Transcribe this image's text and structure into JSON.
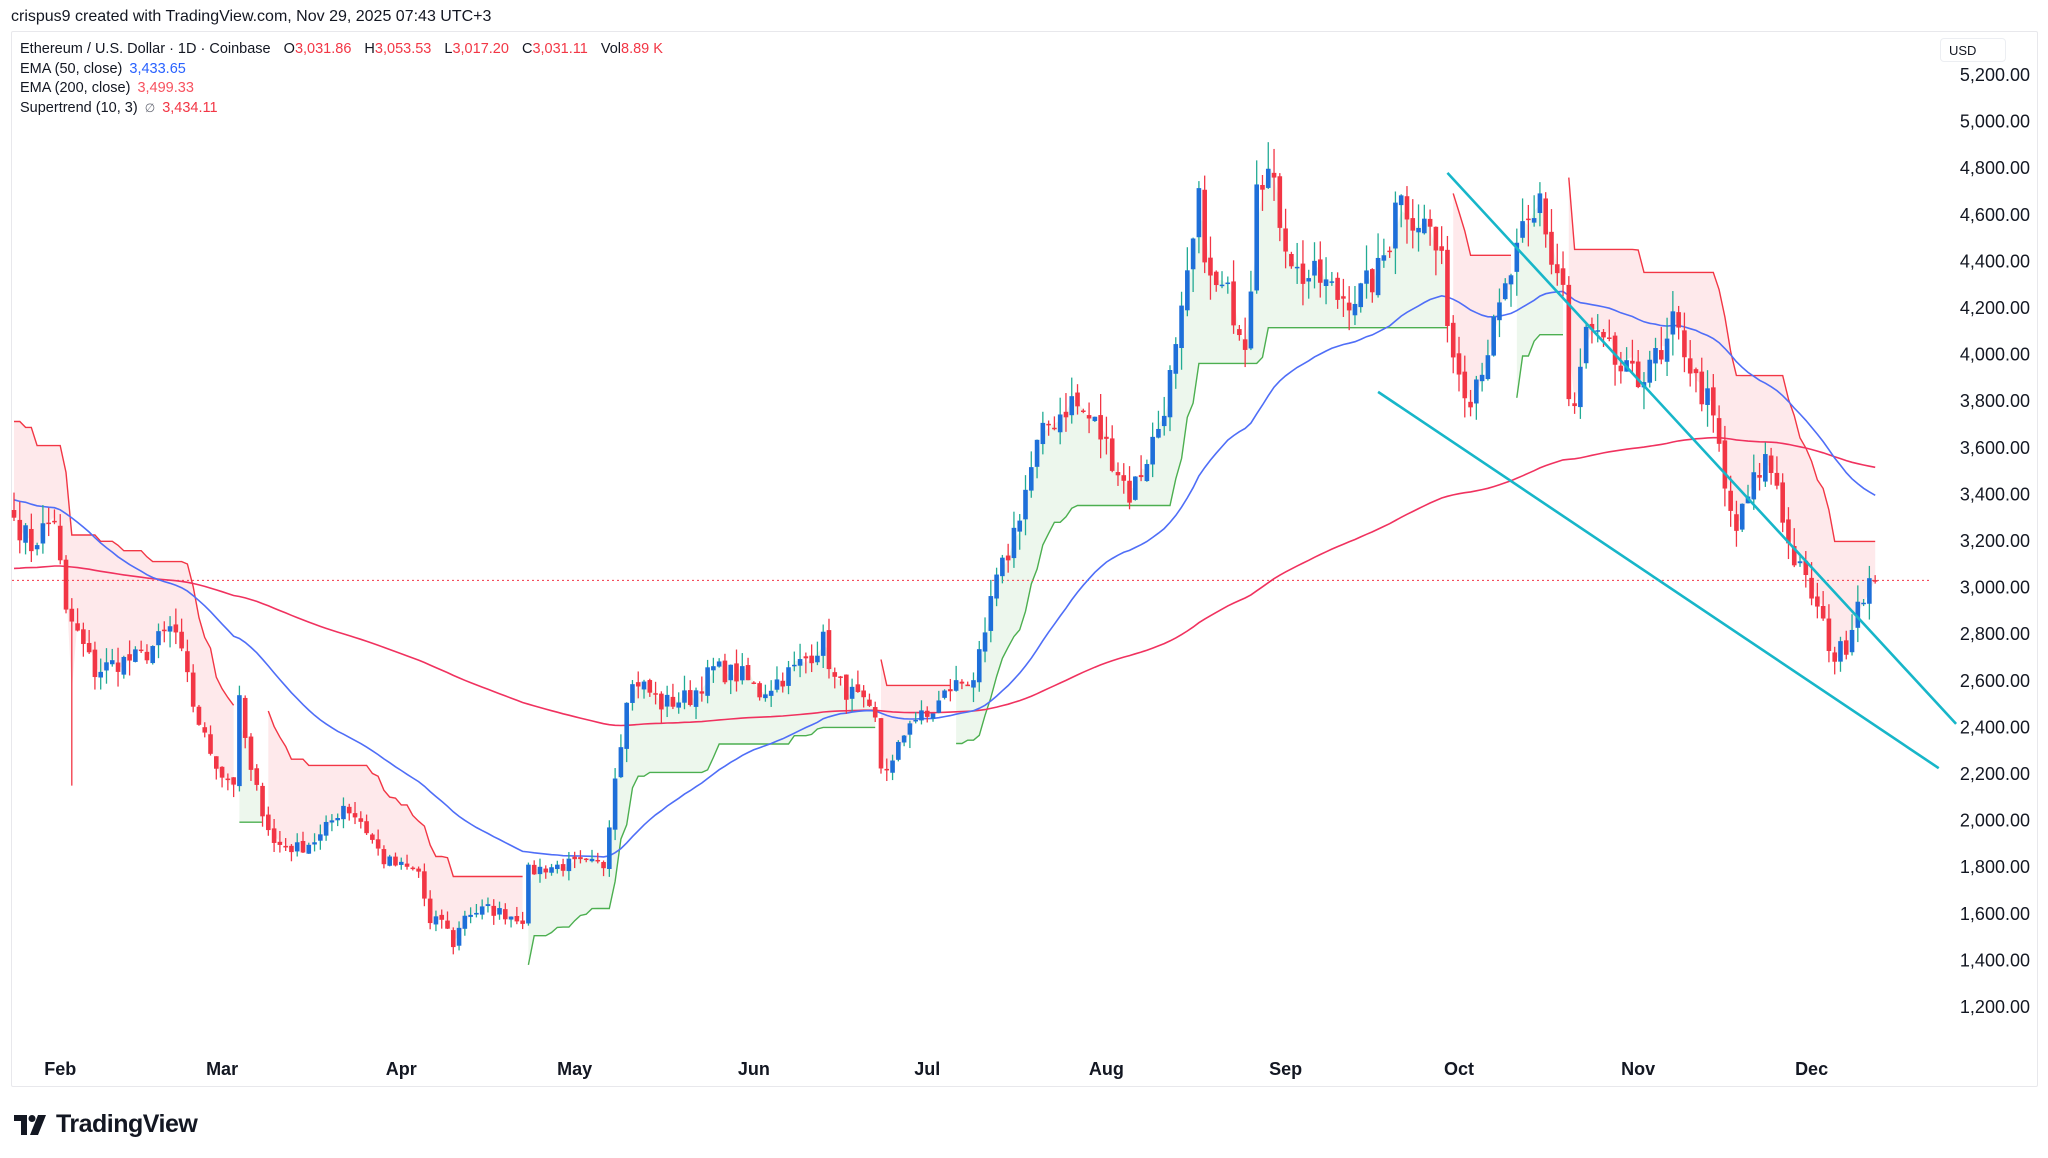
{
  "credit": "crispus9 created with TradingView.com, Nov 29, 2025 07:43 UTC+3",
  "legend": {
    "symbol": "Ethereum / U.S. Dollar · 1D · Coinbase",
    "open_label": "O",
    "open": "3,031.86",
    "high_label": "H",
    "high": "3,053.53",
    "low_label": "L",
    "low": "3,017.20",
    "close_label": "C",
    "close": "3,031.11",
    "vol_label": "Vol",
    "vol": "8.89 K",
    "ema50_label": "EMA (50, close)",
    "ema50": "3,433.65",
    "ema200_label": "EMA (200, close)",
    "ema200": "3,499.33",
    "supertrend_label": "Supertrend (10, 3)",
    "supertrend_icon": "∅",
    "supertrend": "3,434.11"
  },
  "currency": "USD",
  "brand": "TradingView",
  "colors": {
    "up_body": "#1e6fd9",
    "up_wick": "#22ab94",
    "down": "#f23645",
    "ema50": "#4f6ef7",
    "ema200": "#f0325f",
    "st_up": "#4caf50",
    "st_down": "#f23645",
    "st_up_fill": "rgba(76,175,80,0.10)",
    "st_down_fill": "rgba(242,54,69,0.11)",
    "wedge": "#17b6c9",
    "last_price_line": "#f23645"
  },
  "chart_data": {
    "type": "candlestick",
    "title": "Ethereum / U.S. Dollar · 1D · Coinbase",
    "xlabel": "",
    "ylabel": "USD",
    "ylim": [
      1050,
      5280
    ],
    "y_ticks": [
      "5,200.00",
      "5,000.00",
      "4,800.00",
      "4,600.00",
      "4,400.00",
      "4,200.00",
      "4,000.00",
      "3,800.00",
      "3,600.00",
      "3,400.00",
      "3,200.00",
      "3,000.00",
      "2,800.00",
      "2,600.00",
      "2,400.00",
      "2,200.00",
      "2,000.00",
      "1,800.00",
      "1,600.00",
      "1,400.00",
      "1,200.00"
    ],
    "x_ticks": [
      "Feb",
      "Mar",
      "Apr",
      "May",
      "Jun",
      "Jul",
      "Aug",
      "Sep",
      "Oct",
      "Nov",
      "Dec"
    ],
    "x_tick_day_index": [
      8,
      36,
      67,
      97,
      128,
      158,
      189,
      220,
      250,
      281,
      311
    ],
    "start_date": "2025-01-24",
    "end_date": "2025-11-29",
    "close_anchors": [
      [
        0,
        3300
      ],
      [
        3,
        3180
      ],
      [
        5,
        3250
      ],
      [
        7,
        3300
      ],
      [
        9,
        2880
      ],
      [
        10,
        2850
      ],
      [
        14,
        2640
      ],
      [
        18,
        2680
      ],
      [
        22,
        2700
      ],
      [
        27,
        2820
      ],
      [
        28,
        2800
      ],
      [
        31,
        2500
      ],
      [
        33,
        2350
      ],
      [
        36,
        2200
      ],
      [
        38,
        2170
      ],
      [
        39,
        2500
      ],
      [
        41,
        2200
      ],
      [
        45,
        1900
      ],
      [
        49,
        1880
      ],
      [
        53,
        1930
      ],
      [
        57,
        2070
      ],
      [
        60,
        2000
      ],
      [
        64,
        1830
      ],
      [
        67,
        1800
      ],
      [
        70,
        1780
      ],
      [
        72,
        1550
      ],
      [
        74,
        1580
      ],
      [
        76,
        1470
      ],
      [
        78,
        1600
      ],
      [
        82,
        1620
      ],
      [
        88,
        1580
      ],
      [
        89,
        1780
      ],
      [
        92,
        1800
      ],
      [
        96,
        1810
      ],
      [
        102,
        1810
      ],
      [
        104,
        2200
      ],
      [
        105,
        2350
      ],
      [
        106,
        2550
      ],
      [
        108,
        2600
      ],
      [
        112,
        2500
      ],
      [
        117,
        2530
      ],
      [
        121,
        2650
      ],
      [
        126,
        2620
      ],
      [
        129,
        2550
      ],
      [
        135,
        2650
      ],
      [
        138,
        2720
      ],
      [
        140,
        2770
      ],
      [
        142,
        2600
      ],
      [
        146,
        2520
      ],
      [
        149,
        2420
      ],
      [
        150,
        2230
      ],
      [
        152,
        2240
      ],
      [
        155,
        2440
      ],
      [
        158,
        2440
      ],
      [
        162,
        2570
      ],
      [
        166,
        2620
      ],
      [
        168,
        2760
      ],
      [
        169,
        2950
      ],
      [
        172,
        3150
      ],
      [
        175,
        3420
      ],
      [
        177,
        3600
      ],
      [
        179,
        3700
      ],
      [
        183,
        3800
      ],
      [
        187,
        3700
      ],
      [
        190,
        3560
      ],
      [
        193,
        3400
      ],
      [
        195,
        3500
      ],
      [
        198,
        3690
      ],
      [
        201,
        4000
      ],
      [
        203,
        4300
      ],
      [
        205,
        4640
      ],
      [
        207,
        4300
      ],
      [
        210,
        4250
      ],
      [
        213,
        4080
      ],
      [
        214,
        4330
      ],
      [
        215,
        4800
      ],
      [
        217,
        4780
      ],
      [
        220,
        4500
      ],
      [
        222,
        4350
      ],
      [
        226,
        4320
      ],
      [
        229,
        4250
      ],
      [
        233,
        4260
      ],
      [
        236,
        4350
      ],
      [
        238,
        4500
      ],
      [
        239,
        4700
      ],
      [
        242,
        4600
      ],
      [
        245,
        4540
      ],
      [
        246,
        4450
      ],
      [
        247,
        4370
      ],
      [
        249,
        4000
      ],
      [
        251,
        3880
      ],
      [
        252,
        3840
      ],
      [
        256,
        4100
      ],
      [
        259,
        4350
      ],
      [
        261,
        4500
      ],
      [
        263,
        4560
      ],
      [
        264,
        4680
      ],
      [
        266,
        4400
      ],
      [
        268,
        4300
      ],
      [
        269,
        3800
      ],
      [
        270,
        3750
      ],
      [
        272,
        4100
      ],
      [
        274,
        4050
      ],
      [
        276,
        4000
      ],
      [
        278,
        3930
      ],
      [
        281,
        3880
      ],
      [
        283,
        4000
      ],
      [
        285,
        3950
      ],
      [
        287,
        4120
      ],
      [
        289,
        4030
      ],
      [
        291,
        3880
      ],
      [
        293,
        3800
      ],
      [
        294,
        3700
      ],
      [
        295,
        3600
      ],
      [
        296,
        3400
      ],
      [
        298,
        3250
      ],
      [
        301,
        3450
      ],
      [
        303,
        3550
      ],
      [
        305,
        3450
      ],
      [
        307,
        3180
      ],
      [
        309,
        3070
      ],
      [
        311,
        2970
      ],
      [
        313,
        2830
      ],
      [
        315,
        2700
      ],
      [
        317,
        2760
      ],
      [
        319,
        2950
      ],
      [
        321,
        3020
      ],
      [
        322,
        3031
      ]
    ],
    "series": [
      {
        "name": "EMA (50, close)",
        "last": 3433.65
      },
      {
        "name": "EMA (200, close)",
        "last": 3499.33
      },
      {
        "name": "Supertrend (10, 3)",
        "last": 3434.11
      }
    ],
    "last_price": 3031.11,
    "annotations": {
      "falling_wedge_upper": [
        [
          248,
          4780
        ],
        [
          336,
          2415
        ]
      ],
      "falling_wedge_lower": [
        [
          236,
          3840
        ],
        [
          333,
          2225
        ]
      ]
    }
  }
}
